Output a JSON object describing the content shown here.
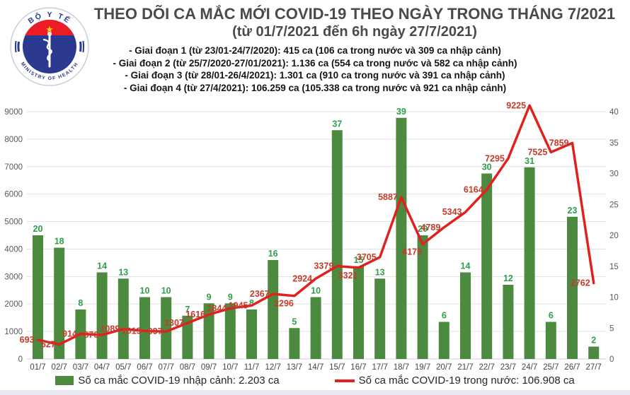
{
  "chart_data": {
    "type": "bar+line",
    "title": "THEO DÕI CA MẮC MỚI COVID-19 THEO NGÀY TRONG THÁNG 7/2021",
    "subtitle": "(từ 01/7/2021 đến 6h ngày 27/7/2021)",
    "categories": [
      "01/7",
      "02/7",
      "03/7",
      "04/7",
      "05/7",
      "06/7",
      "07/7",
      "08/7",
      "09/7",
      "10/7",
      "11/7",
      "12/7",
      "13/7",
      "14/7",
      "15/7",
      "16/7",
      "17/7",
      "18/7",
      "19/7",
      "20/7",
      "21/7",
      "22/7",
      "23/7",
      "24/7",
      "25/7",
      "26/7",
      "27/7"
    ],
    "series": [
      {
        "name": "Số ca mắc COVID-19 nhập cảnh",
        "type": "bar",
        "axis": "right",
        "values": [
          20,
          18,
          8,
          14,
          13,
          10,
          10,
          7,
          9,
          9,
          8,
          16,
          5,
          10,
          37,
          15,
          13,
          39,
          20,
          6,
          14,
          30,
          12,
          31,
          6,
          23,
          2
        ]
      },
      {
        "name": "Số ca mắc COVID-19 trong nước",
        "type": "line",
        "axis": "left",
        "values": [
          693,
          527,
          914,
          876,
          1089,
          1019,
          997,
          1307,
          1616,
          1844,
          1945,
          2367,
          2296,
          2924,
          3379,
          3321,
          3705,
          5887,
          4175,
          4789,
          5343,
          6164,
          7295,
          9225,
          7525,
          7859,
          2762
        ]
      }
    ],
    "left_axis": {
      "min": 0,
      "max": 9000,
      "step": 1000,
      "ticks": [
        "0",
        "1000",
        "2000",
        "3000",
        "4000",
        "5000",
        "6000",
        "7000",
        "8000",
        "9000"
      ]
    },
    "right_axis": {
      "min": 0,
      "max": 40,
      "step": 5,
      "ticks": [
        "0",
        "5",
        "10",
        "15",
        "20",
        "25",
        "30",
        "35",
        "40"
      ]
    },
    "grid": true,
    "legend_position": "bottom"
  },
  "phases": [
    "- Giai đoạn 1 (từ 23/01-24/7/2020): 415 ca (106 ca trong nước và 309 ca nhập cảnh)",
    "- Giai đoạn 2 (từ 25/7/2020-27/01/2021): 1.136 ca (554 ca trong nước và 582 ca nhập cảnh)",
    "- Giai đoạn 3 (từ 28/01-26/4/2021): 1.301 ca (910 ca trong nước và 391 ca nhập cảnh)",
    "- Giai đoạn 4 (từ 27/4/2021): 106.259 ca (105.338 ca trong nước và 921 ca nhập cảnh)"
  ],
  "legend": {
    "items": [
      {
        "swatch": "green-square",
        "label": "Số ca mắc COVID-19 nhập cảnh: 2.203 ca"
      },
      {
        "swatch": "red-line",
        "label": "Số ca mắc COVID-19 trong nước: 106.908 ca"
      }
    ]
  },
  "logo": {
    "top_text": "BỘ Y TẾ",
    "bottom_text": "MINISTRY OF HEALTH",
    "star": "★"
  },
  "colors": {
    "bar": "#4c8a3f",
    "bar_label": "#2f9e49",
    "line": "#e0211d",
    "line_label": "#c43b2a",
    "gridline": "#e2e2e2",
    "baseline": "#cfcfcf",
    "axis_text": "#595959",
    "date_text": "#444444",
    "title_text": "#4a4a4a",
    "logo_navy": "#2b3990",
    "logo_red": "#ec1c24",
    "logo_star": "#ffd21e"
  }
}
